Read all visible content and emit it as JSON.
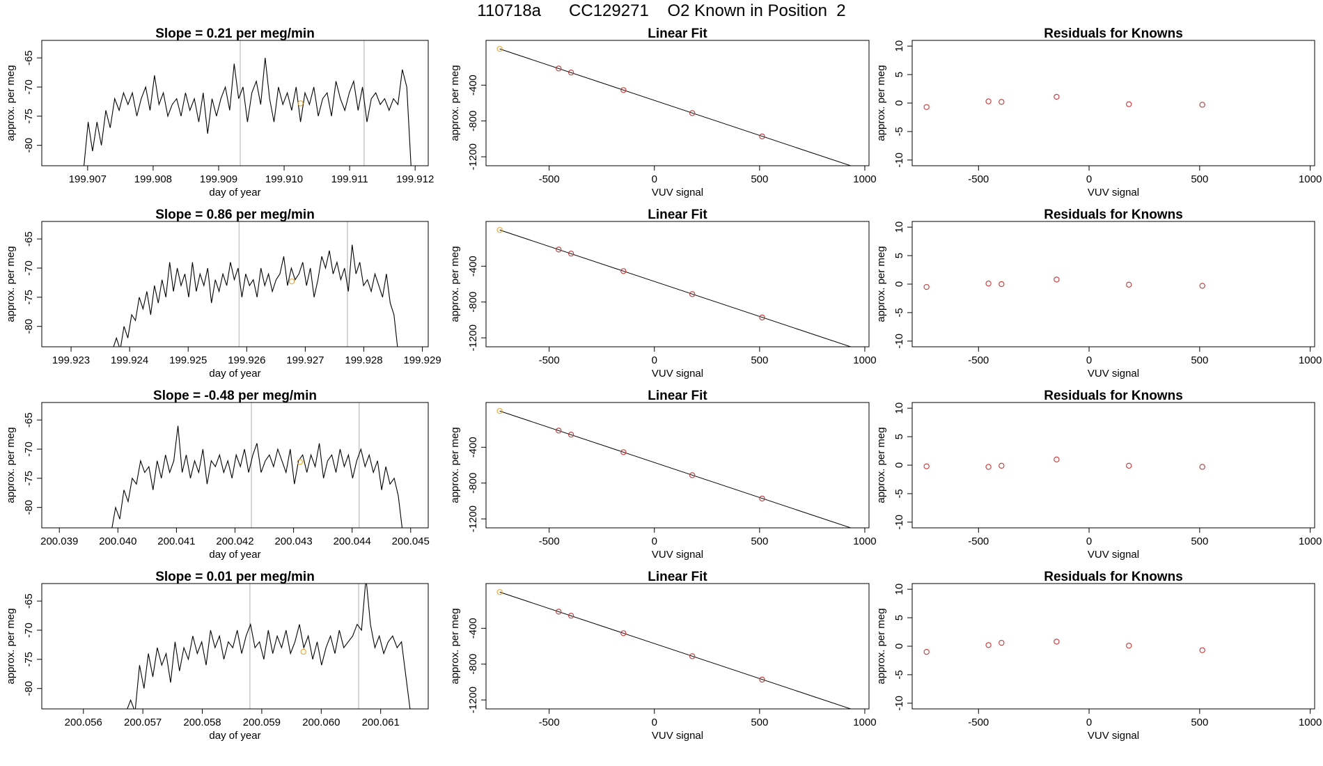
{
  "page": {
    "title": "110718a      CC129271    O2 Known in Position  2"
  },
  "chart_data": [
    {
      "type": "line",
      "title": "Slope =  0.21  per meg/min",
      "xlabel": "day of year",
      "ylabel": "approx. per meg",
      "xlim": [
        199.9063,
        199.9122
      ],
      "ylim": [
        -83.5,
        -62.0
      ],
      "x_ticks": [
        "199.907",
        "199.908",
        "199.909",
        "199.910",
        "199.911",
        "199.912"
      ],
      "y_ticks": [
        "-80",
        "-75",
        "-70",
        "-65"
      ],
      "start": 199.90694,
      "end": 199.91194,
      "vlines": [
        199.90933,
        199.91122
      ],
      "trace": [
        -84,
        -76,
        -81,
        -76,
        -80,
        -74,
        -77,
        -72,
        -74,
        -71,
        -73,
        -71,
        -75,
        -72,
        -70,
        -74,
        -68,
        -73,
        -71,
        -75,
        -73,
        -72,
        -75,
        -71,
        -74,
        -72,
        -76,
        -71,
        -78,
        -72,
        -75,
        -72,
        -70,
        -74,
        -66,
        -72,
        -70,
        -76,
        -71,
        -69,
        -73,
        -65,
        -72,
        -76,
        -70,
        -73,
        -71,
        -74,
        -70,
        -76,
        -71,
        -73,
        -70,
        -75,
        -72,
        -71,
        -75,
        -69,
        -72,
        -74,
        -71,
        -69,
        -74,
        -70,
        -76,
        -72,
        -71,
        -73,
        -72,
        -74,
        -72,
        -73,
        -67,
        -70,
        -84
      ],
      "marker": {
        "x": 199.91025,
        "y": -72.8,
        "color": "#e8a530"
      }
    },
    {
      "type": "scatter",
      "title": "Linear Fit",
      "xlabel": "VUV signal",
      "ylabel": "approx. per meg",
      "xlim": [
        -800,
        1020
      ],
      "ylim": [
        -1300,
        100
      ],
      "x_ticks": [
        "-500",
        "0",
        "500",
        "1000"
      ],
      "y_ticks": [
        "-1200",
        "-800",
        "-400"
      ],
      "x": [
        -735,
        -455,
        -396,
        -147,
        180,
        512
      ],
      "y": [
        5,
        -214,
        -259,
        -455,
        -712,
        -973
      ],
      "line": {
        "x": [
          -735,
          965
        ],
        "y": [
          5,
          -1325
        ]
      },
      "first_point_color": "#e8a530",
      "point_color": "#cc3333"
    },
    {
      "type": "scatter",
      "title": "Residuals for Knowns",
      "xlabel": "VUV signal",
      "ylabel": "approx. per meg",
      "xlim": [
        -800,
        1020
      ],
      "ylim": [
        -11,
        11
      ],
      "x_ticks": [
        "-500",
        "0",
        "500",
        "1000"
      ],
      "y_ticks": [
        "-10",
        "-5",
        "0",
        "5",
        "10"
      ],
      "x": [
        -735,
        -455,
        -396,
        -147,
        180,
        512
      ],
      "y": [
        -0.7,
        0.3,
        0.2,
        1.1,
        -0.2,
        -0.3
      ],
      "point_color": "#cc3333"
    },
    {
      "type": "line",
      "title": "Slope =  0.86  per meg/min",
      "xlabel": "day of year",
      "ylabel": "approx. per meg",
      "xlim": [
        199.9225,
        199.9291
      ],
      "ylim": [
        -83.5,
        -62.0
      ],
      "x_ticks": [
        "199.923",
        "199.924",
        "199.925",
        "199.926",
        "199.927",
        "199.928",
        "199.929"
      ],
      "y_ticks": [
        "-80",
        "-75",
        "-70",
        "-65"
      ],
      "start": 199.92371,
      "end": 199.92858,
      "vlines": [
        199.92587,
        199.92772
      ],
      "trace": [
        -84,
        -82,
        -84,
        -80,
        -82,
        -78,
        -79,
        -75,
        -77,
        -74,
        -78,
        -73,
        -76,
        -72,
        -75,
        -69,
        -74,
        -70,
        -73,
        -71,
        -75,
        -69,
        -74,
        -71,
        -73,
        -70,
        -76,
        -72,
        -74,
        -71,
        -73,
        -69,
        -72,
        -70,
        -75,
        -71,
        -73,
        -72,
        -75,
        -70,
        -73,
        -71,
        -74,
        -72,
        -71,
        -68,
        -73,
        -70,
        -72,
        -71,
        -69,
        -73,
        -70,
        -75,
        -72,
        -68,
        -70,
        -67,
        -71,
        -69,
        -72,
        -70,
        -74,
        -66,
        -71,
        -69,
        -73,
        -72,
        -74,
        -71,
        -73,
        -75,
        -71,
        -76,
        -78,
        -84
      ],
      "marker": {
        "x": 199.92677,
        "y": -72.3,
        "color": "#e8a530"
      }
    },
    {
      "type": "scatter",
      "title": "Linear Fit",
      "xlabel": "VUV signal",
      "ylabel": "approx. per meg",
      "xlim": [
        -800,
        1020
      ],
      "ylim": [
        -1300,
        100
      ],
      "x_ticks": [
        "-500",
        "0",
        "500",
        "1000"
      ],
      "y_ticks": [
        "-1200",
        "-800",
        "-400"
      ],
      "x": [
        -735,
        -455,
        -396,
        -147,
        180,
        512
      ],
      "y": [
        5,
        -214,
        -259,
        -455,
        -712,
        -973
      ],
      "line": {
        "x": [
          -735,
          965
        ],
        "y": [
          5,
          -1325
        ]
      },
      "first_point_color": "#e8a530",
      "point_color": "#cc3333"
    },
    {
      "type": "scatter",
      "title": "Residuals for Knowns",
      "xlabel": "VUV signal",
      "ylabel": "approx. per meg",
      "xlim": [
        -800,
        1020
      ],
      "ylim": [
        -11,
        11
      ],
      "x_ticks": [
        "-500",
        "0",
        "500",
        "1000"
      ],
      "y_ticks": [
        "-10",
        "-5",
        "0",
        "5",
        "10"
      ],
      "x": [
        -735,
        -455,
        -396,
        -147,
        180,
        512
      ],
      "y": [
        -0.5,
        0.1,
        0.0,
        0.8,
        -0.1,
        -0.3
      ],
      "point_color": "#cc3333"
    },
    {
      "type": "line",
      "title": "Slope =  -0.48  per meg/min",
      "xlabel": "day of year",
      "ylabel": "approx. per meg",
      "xlim": [
        200.0387,
        200.0453
      ],
      "ylim": [
        -83.5,
        -62.0
      ],
      "x_ticks": [
        "200.039",
        "200.040",
        "200.041",
        "200.042",
        "200.043",
        "200.044",
        "200.045"
      ],
      "y_ticks": [
        "-80",
        "-75",
        "-70",
        "-65"
      ],
      "start": 200.03989,
      "end": 200.04486,
      "vlines": [
        200.04228,
        200.04412
      ],
      "trace": [
        -84,
        -80,
        -82,
        -77,
        -79,
        -75,
        -76,
        -72,
        -74,
        -73,
        -77,
        -72,
        -75,
        -71,
        -74,
        -72,
        -66,
        -74,
        -71,
        -75,
        -72,
        -74,
        -70,
        -76,
        -72,
        -73,
        -71,
        -74,
        -72,
        -75,
        -71,
        -73,
        -70,
        -74,
        -71,
        -69,
        -74,
        -72,
        -71,
        -73,
        -70,
        -72,
        -74,
        -70,
        -76,
        -72,
        -71,
        -74,
        -71,
        -73,
        -69,
        -75,
        -72,
        -71,
        -74,
        -70,
        -73,
        -71,
        -75,
        -72,
        -70,
        -73,
        -71,
        -74,
        -72,
        -77,
        -73,
        -76,
        -75,
        -78,
        -84
      ],
      "marker": {
        "x": 200.04311,
        "y": -72.2,
        "color": "#e8a530"
      }
    },
    {
      "type": "scatter",
      "title": "Linear Fit",
      "xlabel": "VUV signal",
      "ylabel": "approx. per meg",
      "xlim": [
        -800,
        1020
      ],
      "ylim": [
        -1300,
        100
      ],
      "x_ticks": [
        "-500",
        "0",
        "500",
        "1000"
      ],
      "y_ticks": [
        "-1200",
        "-800",
        "-400"
      ],
      "x": [
        -735,
        -455,
        -396,
        -147,
        180,
        512
      ],
      "y": [
        5,
        -214,
        -259,
        -455,
        -712,
        -973
      ],
      "line": {
        "x": [
          -735,
          965
        ],
        "y": [
          5,
          -1325
        ]
      },
      "first_point_color": "#e8a530",
      "point_color": "#cc3333"
    },
    {
      "type": "scatter",
      "title": "Residuals for Knowns",
      "xlabel": "VUV signal",
      "ylabel": "approx. per meg",
      "xlim": [
        -800,
        1020
      ],
      "ylim": [
        -11,
        11
      ],
      "x_ticks": [
        "-500",
        "0",
        "500",
        "1000"
      ],
      "y_ticks": [
        "-10",
        "-5",
        "0",
        "5",
        "10"
      ],
      "x": [
        -735,
        -455,
        -396,
        -147,
        180,
        512
      ],
      "y": [
        -0.2,
        -0.3,
        -0.1,
        1.0,
        -0.1,
        -0.3
      ],
      "point_color": "#cc3333"
    },
    {
      "type": "line",
      "title": "Slope =  0.01  per meg/min",
      "xlabel": "day of year",
      "ylabel": "approx. per meg",
      "xlim": [
        200.0553,
        200.0618
      ],
      "ylim": [
        -83.5,
        -62.0
      ],
      "x_ticks": [
        "200.056",
        "200.057",
        "200.058",
        "200.059",
        "200.060",
        "200.061"
      ],
      "y_ticks": [
        "-80",
        "-75",
        "-70",
        "-65"
      ],
      "start": 200.05672,
      "end": 200.0615,
      "vlines": [
        200.0588,
        200.06063
      ],
      "trace": [
        -84,
        -82,
        -84,
        -76,
        -80,
        -74,
        -78,
        -73,
        -76,
        -74,
        -79,
        -72,
        -77,
        -73,
        -75,
        -71,
        -74,
        -72,
        -76,
        -70,
        -73,
        -71,
        -75,
        -72,
        -73,
        -70,
        -74,
        -71,
        -69,
        -73,
        -72,
        -75,
        -70,
        -74,
        -71,
        -73,
        -70,
        -74,
        -72,
        -69,
        -73,
        -71,
        -75,
        -72,
        -76,
        -73,
        -71,
        -74,
        -70,
        -73,
        -72,
        -71,
        -69,
        -70,
        -61,
        -69,
        -73,
        -71,
        -74,
        -72,
        -71,
        -73,
        -72,
        -78,
        -84
      ],
      "marker": {
        "x": 200.0597,
        "y": -73.7,
        "color": "#e8a530"
      }
    },
    {
      "type": "scatter",
      "title": "Linear Fit",
      "xlabel": "VUV signal",
      "ylabel": "approx. per meg",
      "xlim": [
        -800,
        1020
      ],
      "ylim": [
        -1300,
        100
      ],
      "x_ticks": [
        "-500",
        "0",
        "500",
        "1000"
      ],
      "y_ticks": [
        "-1200",
        "-800",
        "-400"
      ],
      "x": [
        -735,
        -455,
        -396,
        -147,
        180,
        512
      ],
      "y": [
        5,
        -214,
        -259,
        -455,
        -712,
        -973
      ],
      "line": {
        "x": [
          -735,
          965
        ],
        "y": [
          5,
          -1325
        ]
      },
      "first_point_color": "#e8a530",
      "point_color": "#cc3333"
    },
    {
      "type": "scatter",
      "title": "Residuals for Knowns",
      "xlabel": "VUV signal",
      "ylabel": "approx. per meg",
      "xlim": [
        -800,
        1020
      ],
      "ylim": [
        -11,
        11
      ],
      "x_ticks": [
        "-500",
        "0",
        "500",
        "1000"
      ],
      "y_ticks": [
        "-10",
        "-5",
        "0",
        "5",
        "10"
      ],
      "x": [
        -735,
        -455,
        -396,
        -147,
        180,
        512
      ],
      "y": [
        -1.0,
        0.2,
        0.6,
        0.8,
        0.1,
        -0.7
      ],
      "point_color": "#cc3333"
    }
  ]
}
